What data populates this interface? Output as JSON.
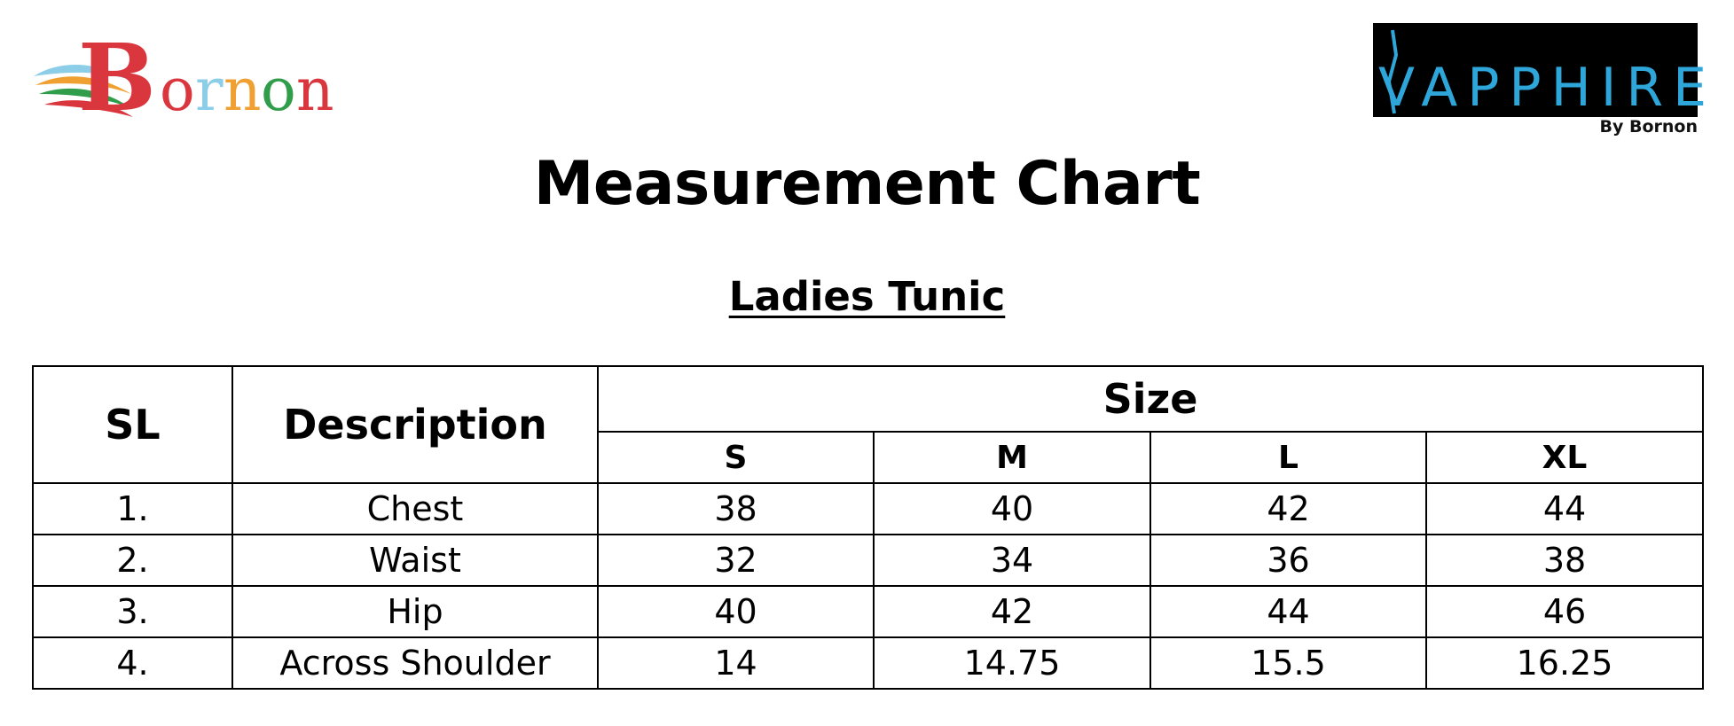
{
  "logos": {
    "left_brand": "Bornon",
    "right_brand": "SAPPHIRE",
    "right_tagline": "By Bornon"
  },
  "title": "Measurement Chart",
  "subtitle": "Ladies Tunic",
  "table": {
    "col_sl": "SL",
    "col_description": "Description",
    "size_group": "Size",
    "sizes": [
      "S",
      "M",
      "L",
      "XL"
    ],
    "rows": [
      {
        "sl": "1.",
        "description": "Chest",
        "values": [
          "38",
          "40",
          "42",
          "44"
        ]
      },
      {
        "sl": "2.",
        "description": "Waist",
        "values": [
          "32",
          "34",
          "36",
          "38"
        ]
      },
      {
        "sl": "3.",
        "description": "Hip",
        "values": [
          "40",
          "42",
          "44",
          "46"
        ]
      },
      {
        "sl": "4.",
        "description": "Across Shoulder",
        "values": [
          "14",
          "14.75",
          "15.5",
          "16.25"
        ]
      }
    ]
  },
  "colors": {
    "bornon_red": "#d9363e",
    "bornon_blue": "#8ccde8",
    "bornon_orange": "#f0a030",
    "bornon_green": "#2f9d4a",
    "sapphire_blue": "#2fa6d9"
  }
}
